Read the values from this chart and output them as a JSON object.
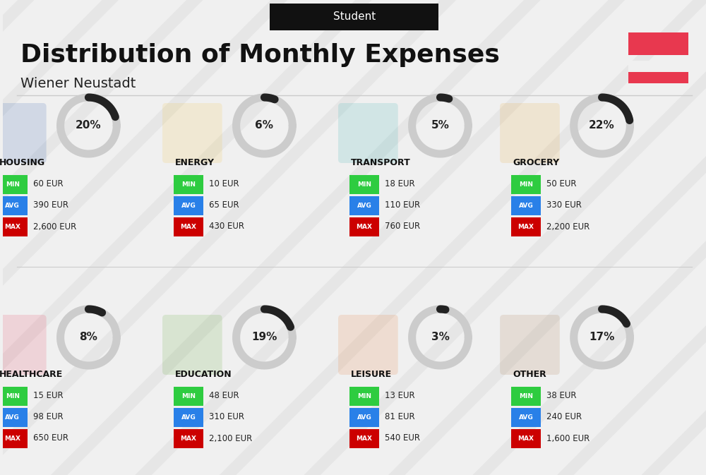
{
  "title": "Distribution of Monthly Expenses",
  "subtitle": "Wiener Neustadt",
  "header_label": "Student",
  "bg_color": "#f0f0f0",
  "header_bg": "#111111",
  "header_text_color": "#ffffff",
  "title_color": "#111111",
  "subtitle_color": "#222222",
  "austria_flag_colors": [
    "#e8384f",
    "#e8384f"
  ],
  "categories": [
    {
      "name": "HOUSING",
      "pct": 20,
      "min_val": "60 EUR",
      "avg_val": "390 EUR",
      "max_val": "2,600 EUR",
      "row": 0,
      "col": 0
    },
    {
      "name": "ENERGY",
      "pct": 6,
      "min_val": "10 EUR",
      "avg_val": "65 EUR",
      "max_val": "430 EUR",
      "row": 0,
      "col": 1
    },
    {
      "name": "TRANSPORT",
      "pct": 5,
      "min_val": "18 EUR",
      "avg_val": "110 EUR",
      "max_val": "760 EUR",
      "row": 0,
      "col": 2
    },
    {
      "name": "GROCERY",
      "pct": 22,
      "min_val": "50 EUR",
      "avg_val": "330 EUR",
      "max_val": "2,200 EUR",
      "row": 0,
      "col": 3
    },
    {
      "name": "HEALTHCARE",
      "pct": 8,
      "min_val": "15 EUR",
      "avg_val": "98 EUR",
      "max_val": "650 EUR",
      "row": 1,
      "col": 0
    },
    {
      "name": "EDUCATION",
      "pct": 19,
      "min_val": "48 EUR",
      "avg_val": "310 EUR",
      "max_val": "2,100 EUR",
      "row": 1,
      "col": 1
    },
    {
      "name": "LEISURE",
      "pct": 3,
      "min_val": "13 EUR",
      "avg_val": "81 EUR",
      "max_val": "540 EUR",
      "row": 1,
      "col": 2
    },
    {
      "name": "OTHER",
      "pct": 17,
      "min_val": "38 EUR",
      "avg_val": "240 EUR",
      "max_val": "1,600 EUR",
      "row": 1,
      "col": 3
    }
  ],
  "min_color": "#2ecc40",
  "avg_color": "#2980e8",
  "max_color": "#cc0000",
  "label_text_color": "#ffffff",
  "ring_filled_color": "#222222",
  "ring_empty_color": "#cccccc",
  "ring_linewidth": 8,
  "value_text_color": "#222222"
}
